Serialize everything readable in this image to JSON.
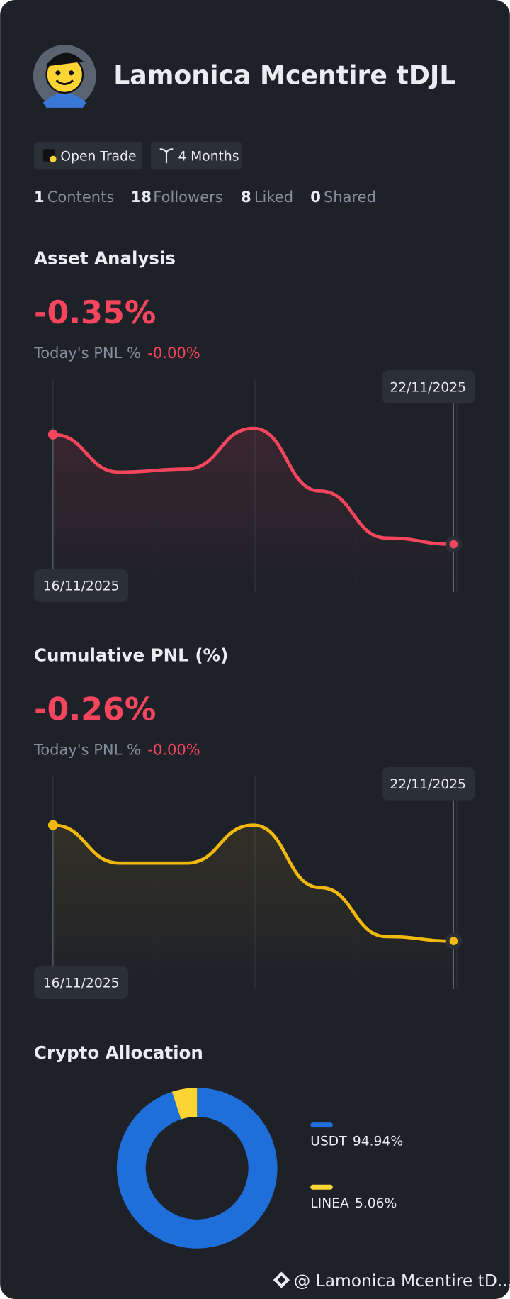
{
  "profile": {
    "name": "Lamonica Mcentire tDJL",
    "badges": [
      "Open Trade",
      "4 Months"
    ],
    "stats": [
      {
        "value": 1,
        "label": "Contents"
      },
      {
        "value": 18,
        "label": "Followers"
      },
      {
        "value": 8,
        "label": "Liked"
      },
      {
        "value": 0,
        "label": "Shared"
      }
    ]
  },
  "chart_data": [
    {
      "type": "line",
      "title": "Asset Analysis",
      "headline": "-0.35%",
      "subtitle": "Today's PNL %",
      "subtitle_value": "-0.00%",
      "categories": [
        "16/11/2025",
        null,
        null,
        null,
        null,
        null,
        "22/11/2025"
      ],
      "values": [
        0,
        -0.12,
        -0.11,
        0.02,
        -0.18,
        -0.33,
        -0.35
      ],
      "color": "#f6465d"
    },
    {
      "type": "line",
      "title": "Cumulative PNL (%)",
      "headline": "-0.26%",
      "subtitle": "Today's PNL %",
      "subtitle_value": "-0.00%",
      "categories": [
        "16/11/2025",
        null,
        null,
        null,
        null,
        null,
        "22/11/2025"
      ],
      "values": [
        0,
        -0.085,
        -0.085,
        0,
        -0.14,
        -0.25,
        -0.26
      ],
      "color": "#f0b90b"
    },
    {
      "type": "pie",
      "title": "Crypto Allocation",
      "categories": [
        "USDT",
        "LINEA"
      ],
      "values": [
        94.94,
        5.06
      ],
      "value_labels": [
        "94.94%",
        "5.06%"
      ],
      "colors": [
        "#1e6fd9",
        "#fcd535"
      ]
    }
  ],
  "watermark": "@ Lamonica Mcentire tD..."
}
